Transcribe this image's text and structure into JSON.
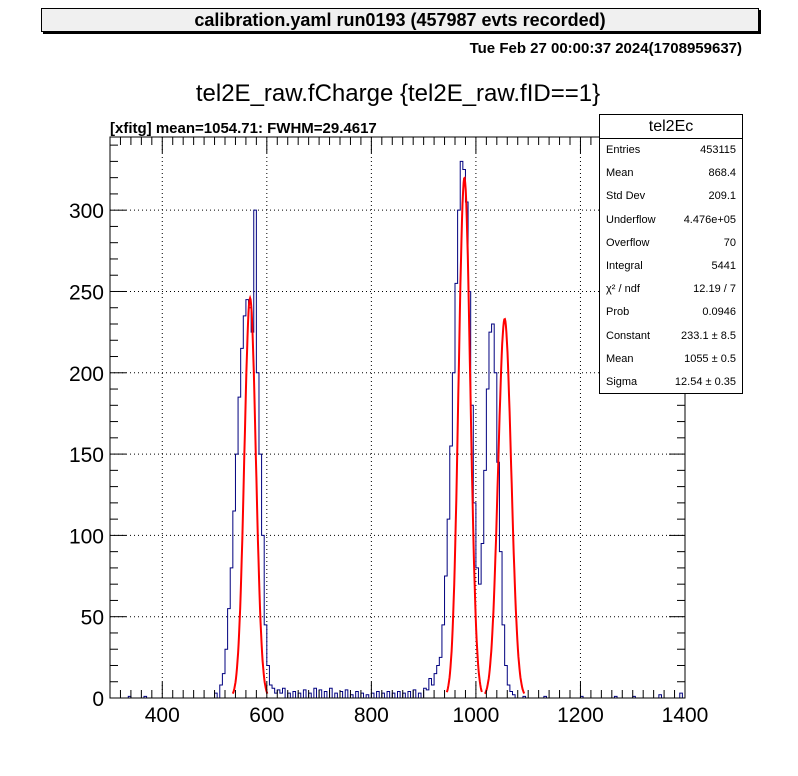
{
  "header": {
    "title": "calibration.yaml  run0193 (457987 evts recorded)"
  },
  "timestamp": "Tue Feb 27 00:00:37 2024(1708959637)",
  "stats": {
    "title": "tel2Ec",
    "rows": [
      {
        "label": "Entries",
        "value": "453115"
      },
      {
        "label": "Mean",
        "value": "868.4"
      },
      {
        "label": "Std Dev",
        "value": "209.1"
      },
      {
        "label": "Underflow",
        "value": "4.476e+05"
      },
      {
        "label": "Overflow",
        "value": "70"
      },
      {
        "label": "Integral",
        "value": "5441"
      },
      {
        "label": "χ² / ndf",
        "value": "12.19 / 7"
      },
      {
        "label": "Prob",
        "value": "0.0946"
      },
      {
        "label": "Constant",
        "value": "233.1 ± 8.5"
      },
      {
        "label": "Mean",
        "value": "1055 ± 0.5"
      },
      {
        "label": "Sigma",
        "value": "12.54 ± 0.35"
      }
    ]
  },
  "colors": {
    "histogram": "#00007f",
    "fit": "#ff0000",
    "grid": "#000000"
  },
  "chart_data": {
    "type": "histogram",
    "title": "tel2E_raw.fCharge {tel2E_raw.fID==1}",
    "subtitle": "[xfitg] mean=1054.71: FWHM=29.4617",
    "xlim": [
      300,
      1400
    ],
    "ylim": [
      0,
      345
    ],
    "xticks": [
      400,
      600,
      800,
      1000,
      1200,
      1400
    ],
    "yticks": [
      0,
      50,
      100,
      150,
      200,
      250,
      300
    ],
    "grid": true,
    "bin_width": 5,
    "bins": [
      [
        335,
        1
      ],
      [
        365,
        1
      ],
      [
        500,
        3
      ],
      [
        510,
        8
      ],
      [
        515,
        15
      ],
      [
        520,
        30
      ],
      [
        525,
        55
      ],
      [
        530,
        80
      ],
      [
        535,
        115
      ],
      [
        540,
        150
      ],
      [
        545,
        185
      ],
      [
        550,
        215
      ],
      [
        555,
        235
      ],
      [
        560,
        245
      ],
      [
        565,
        240
      ],
      [
        570,
        225
      ],
      [
        575,
        300
      ],
      [
        580,
        200
      ],
      [
        585,
        150
      ],
      [
        590,
        100
      ],
      [
        595,
        45
      ],
      [
        600,
        20
      ],
      [
        605,
        8
      ],
      [
        610,
        6
      ],
      [
        615,
        3
      ],
      [
        620,
        5
      ],
      [
        625,
        3
      ],
      [
        630,
        6
      ],
      [
        640,
        3
      ],
      [
        650,
        4
      ],
      [
        660,
        3
      ],
      [
        670,
        5
      ],
      [
        680,
        3
      ],
      [
        690,
        6
      ],
      [
        700,
        5
      ],
      [
        710,
        4
      ],
      [
        720,
        6
      ],
      [
        730,
        3
      ],
      [
        740,
        4
      ],
      [
        750,
        5
      ],
      [
        760,
        2
      ],
      [
        770,
        4
      ],
      [
        780,
        3
      ],
      [
        790,
        2
      ],
      [
        800,
        3
      ],
      [
        810,
        4
      ],
      [
        820,
        3
      ],
      [
        830,
        4
      ],
      [
        840,
        3
      ],
      [
        850,
        4
      ],
      [
        860,
        3
      ],
      [
        870,
        4
      ],
      [
        880,
        5
      ],
      [
        890,
        3
      ],
      [
        900,
        6
      ],
      [
        905,
        5
      ],
      [
        910,
        12
      ],
      [
        915,
        8
      ],
      [
        920,
        15
      ],
      [
        925,
        20
      ],
      [
        930,
        25
      ],
      [
        935,
        45
      ],
      [
        940,
        75
      ],
      [
        945,
        110
      ],
      [
        950,
        155
      ],
      [
        955,
        200
      ],
      [
        960,
        255
      ],
      [
        965,
        300
      ],
      [
        970,
        330
      ],
      [
        975,
        325
      ],
      [
        980,
        305
      ],
      [
        985,
        250
      ],
      [
        990,
        180
      ],
      [
        995,
        120
      ],
      [
        1000,
        80
      ],
      [
        1005,
        70
      ],
      [
        1010,
        95
      ],
      [
        1015,
        140
      ],
      [
        1020,
        190
      ],
      [
        1025,
        225
      ],
      [
        1030,
        230
      ],
      [
        1035,
        200
      ],
      [
        1040,
        145
      ],
      [
        1045,
        90
      ],
      [
        1050,
        45
      ],
      [
        1055,
        20
      ],
      [
        1060,
        8
      ],
      [
        1065,
        4
      ],
      [
        1070,
        2
      ],
      [
        1090,
        1
      ],
      [
        1130,
        1
      ],
      [
        1200,
        1
      ],
      [
        1265,
        1
      ],
      [
        1300,
        1
      ],
      [
        1350,
        2
      ],
      [
        1390,
        3
      ]
    ],
    "fit": {
      "type": "sum of gaussians",
      "peaks": [
        {
          "constant": 246,
          "mean": 568,
          "sigma": 11
        },
        {
          "constant": 320,
          "mean": 978,
          "sigma": 11.2
        },
        {
          "constant": 233.1,
          "mean": 1055,
          "sigma": 12.54
        }
      ]
    }
  }
}
